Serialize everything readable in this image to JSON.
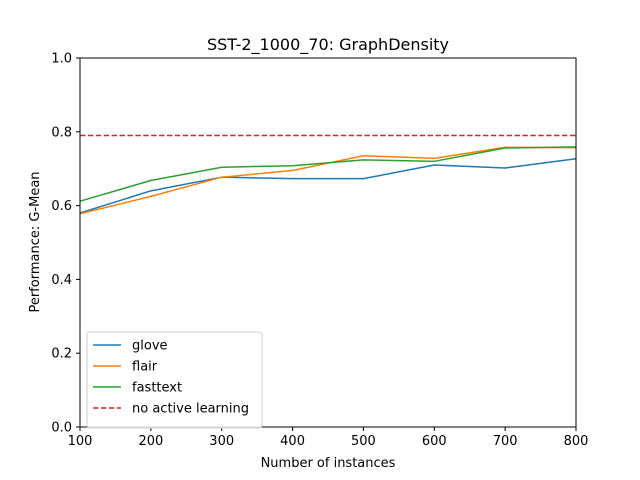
{
  "chart_data": {
    "type": "line",
    "title": "SST-2_1000_70: GraphDensity",
    "xlabel": "Number of instances",
    "ylabel": "Performance: G-Mean",
    "xlim": [
      100,
      800
    ],
    "ylim": [
      0.0,
      1.0
    ],
    "xticks": [
      "100",
      "200",
      "300",
      "400",
      "500",
      "600",
      "700",
      "800"
    ],
    "yticks": [
      "0.0",
      "0.2",
      "0.4",
      "0.6",
      "0.8",
      "1.0"
    ],
    "grid": false,
    "legend_position": "lower-left",
    "x": [
      100,
      200,
      300,
      400,
      500,
      600,
      700,
      800
    ],
    "series": [
      {
        "name": "glove",
        "color": "#1f77b4",
        "style": "solid",
        "values": [
          0.58,
          0.64,
          0.677,
          0.673,
          0.673,
          0.71,
          0.702,
          0.727
        ]
      },
      {
        "name": "flair",
        "color": "#ff7f0e",
        "style": "solid",
        "values": [
          0.578,
          0.625,
          0.677,
          0.695,
          0.735,
          0.728,
          0.758,
          0.757
        ]
      },
      {
        "name": "fasttext",
        "color": "#2ca02c",
        "style": "solid",
        "values": [
          0.612,
          0.668,
          0.704,
          0.708,
          0.724,
          0.72,
          0.756,
          0.759
        ]
      },
      {
        "name": "no active learning",
        "color": "#d62728",
        "style": "dashed",
        "values": [
          0.79,
          0.79,
          0.79,
          0.79,
          0.79,
          0.79,
          0.79,
          0.79
        ]
      }
    ]
  }
}
